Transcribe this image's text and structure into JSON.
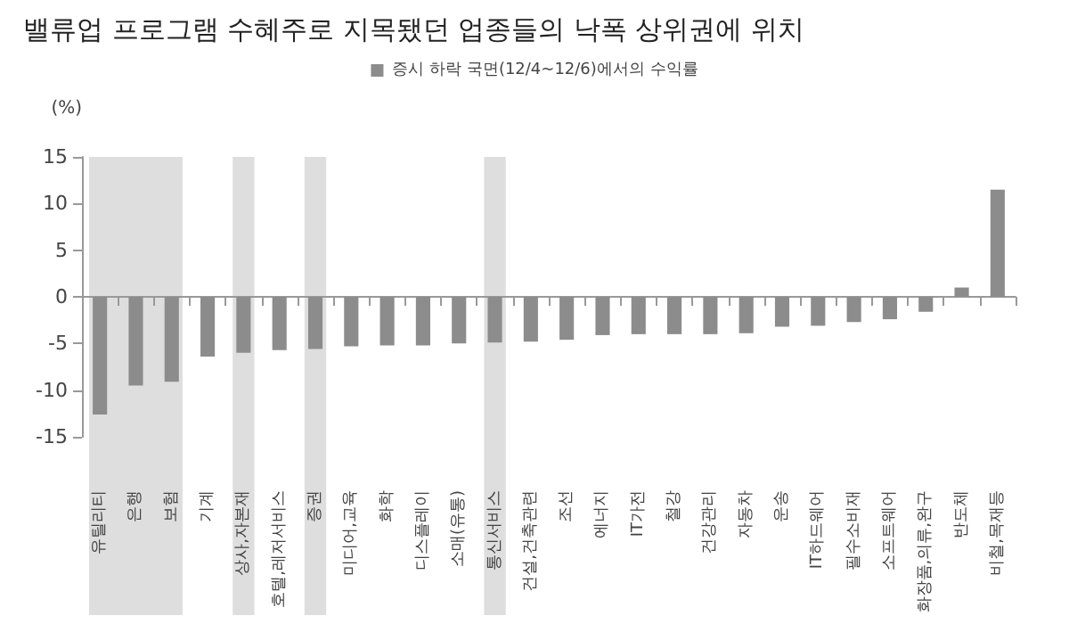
{
  "chart_data": {
    "type": "bar",
    "title": "밸류업 프로그램 수혜주로 지목됐던 업종들의 낙폭 상위권에 위치",
    "ylabel": "(%)",
    "categories": [
      "유틸리티",
      "은행",
      "보험",
      "기계",
      "상사,자본재",
      "호텔,레저서비스",
      "증권",
      "미디어,교육",
      "화학",
      "디스플레이",
      "소매(유통)",
      "통신서비스",
      "건설,건축관련",
      "조선",
      "에너지",
      "IT가전",
      "철강",
      "건강관리",
      "자동차",
      "운송",
      "IT하드웨어",
      "필수소비재",
      "소프트웨어",
      "화장품,의류,완구",
      "반도체",
      "비철,목재등"
    ],
    "series": [
      {
        "name": "증시 하락 국면(12/4~12/6)에서의 수익률",
        "color": "#8c8c8c",
        "values": [
          -12.6,
          -9.5,
          -9.1,
          -6.4,
          -6.0,
          -5.7,
          -5.6,
          -5.3,
          -5.2,
          -5.2,
          -5.0,
          -4.9,
          -4.8,
          -4.6,
          -4.1,
          -4.0,
          -4.0,
          -4.0,
          -3.9,
          -3.2,
          -3.1,
          -2.7,
          -2.4,
          -1.6,
          1.0,
          11.5
        ]
      }
    ],
    "ylim": [
      -15,
      15
    ],
    "yticks": [
      -15,
      -10,
      -5,
      0,
      5,
      10,
      15
    ],
    "bands": [
      {
        "axis": "x",
        "from": "유틸리티",
        "to": "보험",
        "color": "#dedede"
      },
      {
        "axis": "x",
        "from": "상사,자본재",
        "to": "상사,자본재",
        "color": "#dedede"
      },
      {
        "axis": "x",
        "from": "증권",
        "to": "증권",
        "color": "#dedede"
      },
      {
        "axis": "x",
        "from": "통신서비스",
        "to": "통신서비스",
        "color": "#dedede"
      }
    ],
    "legend": "top"
  }
}
